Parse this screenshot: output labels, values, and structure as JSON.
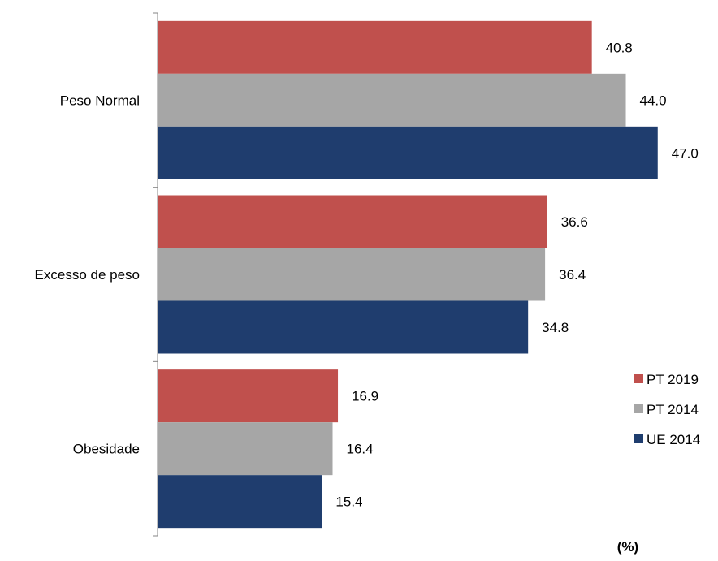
{
  "chart_data": {
    "type": "bar",
    "orientation": "horizontal",
    "categories": [
      "Peso Normal",
      "Excesso de peso",
      "Obesidade"
    ],
    "series": [
      {
        "name": "PT 2019",
        "color": "#c0504d",
        "values": [
          40.8,
          36.6,
          16.9
        ],
        "labels": [
          "40.8",
          "36.6",
          "16.9"
        ]
      },
      {
        "name": "PT 2014",
        "color": "#a6a6a6",
        "values": [
          44.0,
          36.4,
          16.4
        ],
        "labels": [
          "44.0",
          "36.4",
          "16.4"
        ]
      },
      {
        "name": "UE 2014",
        "color": "#1f3d6e",
        "values": [
          47.0,
          34.8,
          15.4
        ],
        "labels": [
          "47.0",
          "34.8",
          "15.4"
        ]
      }
    ],
    "xlim": [
      0,
      50
    ],
    "unit_label": "(%)",
    "legend": "right",
    "grid": false,
    "data_labels": true
  }
}
